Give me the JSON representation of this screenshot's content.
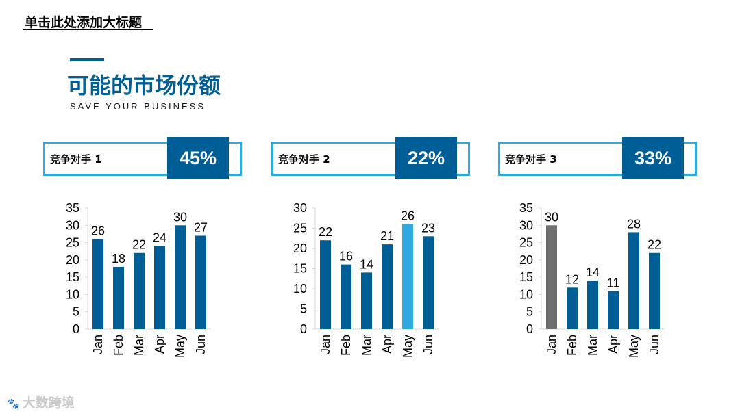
{
  "header": {
    "top_title": "单击此处添加大标题"
  },
  "section": {
    "title": "可能的市场份额",
    "subtitle": "SAVE YOUR BUSINESS"
  },
  "colors": {
    "primary": "#005e96",
    "light_blue": "#2eaae0",
    "gray": "#6f6f6f"
  },
  "competitors": [
    {
      "label": "竞争对手 1",
      "percent": "45%"
    },
    {
      "label": "竞争对手 2",
      "percent": "22%"
    },
    {
      "label": "竞争对手 3",
      "percent": "33%"
    }
  ],
  "watermark": {
    "logo": "🐾",
    "text": "大数跨境"
  },
  "chart_data": [
    {
      "type": "bar",
      "categories": [
        "Jan",
        "Feb",
        "Mar",
        "Apr",
        "May",
        "Jun"
      ],
      "values": [
        26,
        18,
        22,
        24,
        30,
        27
      ],
      "ylim": [
        0,
        35
      ],
      "yticks": [
        0,
        5,
        10,
        15,
        20,
        25,
        30,
        35
      ],
      "bar_colors": [
        "#005e96",
        "#005e96",
        "#005e96",
        "#005e96",
        "#005e96",
        "#005e96"
      ],
      "title": "",
      "xlabel": "",
      "ylabel": "",
      "grid": false,
      "legend": "none"
    },
    {
      "type": "bar",
      "categories": [
        "Jan",
        "Feb",
        "Mar",
        "Apr",
        "May",
        "Jun"
      ],
      "values": [
        22,
        16,
        14,
        21,
        26,
        23
      ],
      "ylim": [
        0,
        30
      ],
      "yticks": [
        0,
        5,
        10,
        15,
        20,
        25,
        30
      ],
      "bar_colors": [
        "#005e96",
        "#005e96",
        "#005e96",
        "#005e96",
        "#2eaae0",
        "#005e96"
      ],
      "title": "",
      "xlabel": "",
      "ylabel": "",
      "grid": false,
      "legend": "none"
    },
    {
      "type": "bar",
      "categories": [
        "Jan",
        "Feb",
        "Mar",
        "Apr",
        "May",
        "Jun"
      ],
      "values": [
        30,
        12,
        14,
        11,
        28,
        22
      ],
      "ylim": [
        0,
        35
      ],
      "yticks": [
        0,
        5,
        10,
        15,
        20,
        25,
        30,
        35
      ],
      "bar_colors": [
        "#6f6f6f",
        "#005e96",
        "#005e96",
        "#005e96",
        "#005e96",
        "#005e96"
      ],
      "title": "",
      "xlabel": "",
      "ylabel": "",
      "grid": false,
      "legend": "none"
    }
  ]
}
